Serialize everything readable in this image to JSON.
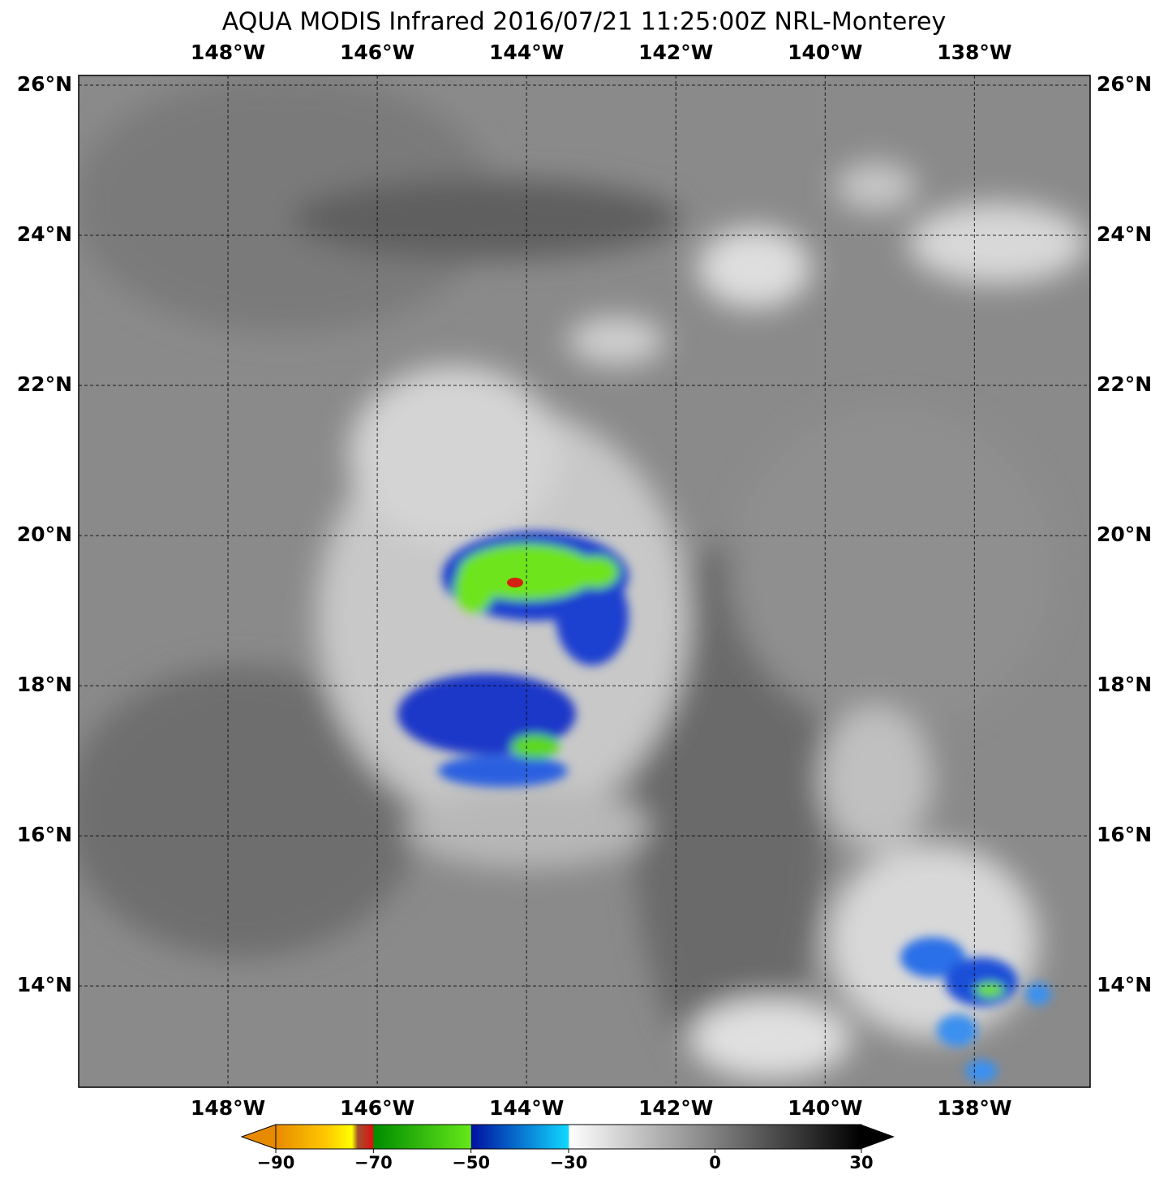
{
  "title": "AQUA MODIS Infrared 2016/07/21 11:25:00Z NRL-Monterey",
  "map": {
    "lonlim": [
      -150,
      -136.45
    ],
    "latlim": [
      12.65,
      26.13
    ],
    "lonticks": [
      {
        "value": -148,
        "label": "148°W"
      },
      {
        "value": -146,
        "label": "146°W"
      },
      {
        "value": -144,
        "label": "144°W"
      },
      {
        "value": -142,
        "label": "142°W"
      },
      {
        "value": -140,
        "label": "140°W"
      },
      {
        "value": -138,
        "label": "138°W"
      }
    ],
    "latticks": [
      {
        "value": 26,
        "label": "26°N"
      },
      {
        "value": 24,
        "label": "24°N"
      },
      {
        "value": 22,
        "label": "22°N"
      },
      {
        "value": 20,
        "label": "20°N"
      },
      {
        "value": 18,
        "label": "18°N"
      },
      {
        "value": 16,
        "label": "16°N"
      },
      {
        "value": 14,
        "label": "14°N"
      }
    ]
  },
  "colorbar": {
    "lim": [
      -90,
      30
    ],
    "ticks": [
      {
        "value": -90,
        "label": "−90"
      },
      {
        "value": -70,
        "label": "−70"
      },
      {
        "value": -50,
        "label": "−50"
      },
      {
        "value": -30,
        "label": "−30"
      },
      0,
      30
    ]
  }
}
